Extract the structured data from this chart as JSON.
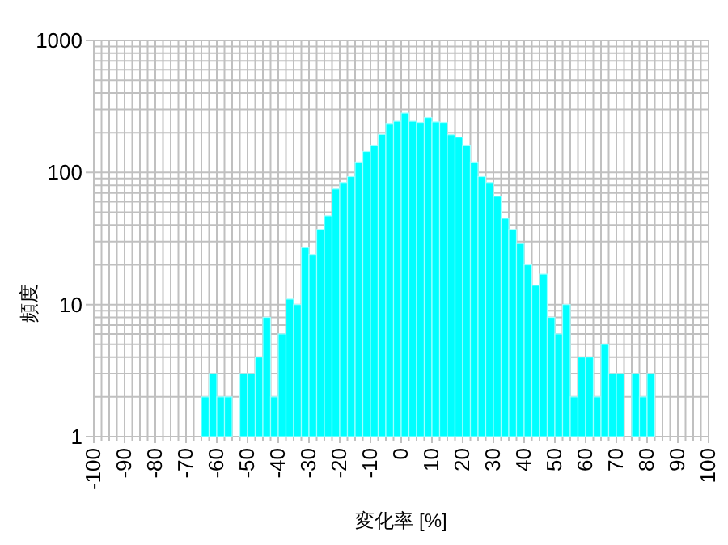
{
  "chart_data": {
    "type": "histogram",
    "xlabel": "変化率 [%]",
    "ylabel": "頻度",
    "bins": [
      -65,
      -62.5,
      -60,
      -57.5,
      -55,
      -52.5,
      -50,
      -47.5,
      -45,
      -42.5,
      -40,
      -37.5,
      -35,
      -32.5,
      -30,
      -27.5,
      -25,
      -22.5,
      -20,
      -17.5,
      -15,
      -12.5,
      -10,
      -7.5,
      -5,
      -2.5,
      0,
      2.5,
      5,
      7.5,
      10,
      12.5,
      15,
      17.5,
      20,
      22.5,
      25,
      27.5,
      30,
      32.5,
      35,
      37.5,
      40,
      42.5,
      45,
      47.5,
      50,
      52.5,
      55,
      57.5,
      60,
      62.5,
      65,
      67.5,
      70,
      72.5,
      75,
      77.5,
      80,
      82.5
    ],
    "values": [
      2,
      3,
      2,
      2,
      null,
      3,
      3,
      4,
      8,
      2,
      6,
      11,
      10,
      27,
      24,
      37,
      47,
      75,
      84,
      93,
      120,
      144,
      161,
      194,
      235,
      244,
      281,
      244,
      239,
      260,
      241,
      239,
      193,
      185,
      161,
      120,
      93,
      84,
      66,
      45,
      37,
      29,
      20,
      14,
      17,
      8,
      6,
      10,
      2,
      4,
      4,
      2,
      5,
      3,
      3,
      null,
      3,
      2,
      3
    ],
    "color": "#00ffff",
    "xlim": [
      -100,
      100
    ],
    "xticks": [
      -100,
      -90,
      -80,
      -70,
      -60,
      -50,
      -40,
      -30,
      -20,
      -10,
      0,
      10,
      20,
      30,
      40,
      50,
      60,
      70,
      80,
      90,
      100
    ],
    "ylim": [
      1,
      1000
    ],
    "yticks": [
      1,
      10,
      100,
      1000
    ],
    "log": "y",
    "grid": true
  }
}
